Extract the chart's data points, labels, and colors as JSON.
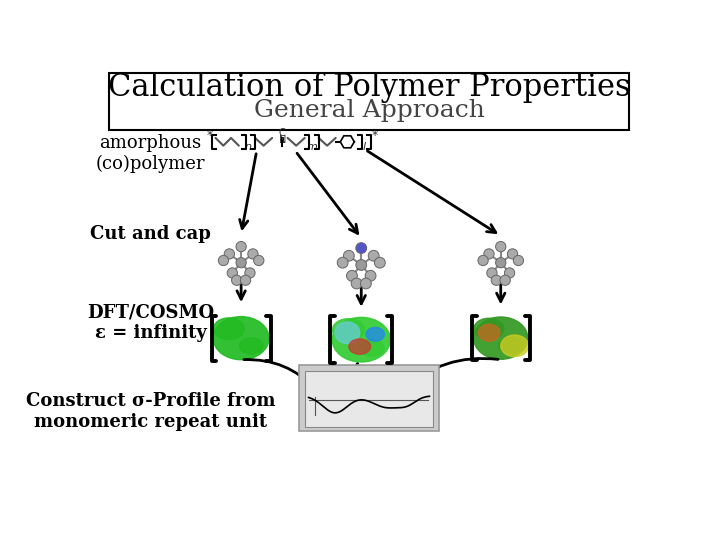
{
  "title_line1": "Calculation of Polymer Properties",
  "title_line2": "General Approach",
  "label1": "amorphous\n(co)polymer",
  "label2": "Cut and cap",
  "label3": "DFT/COSMO\nε = infinity",
  "label4": "Construct σ-Profile from\nmonomeric repeat unit",
  "bg_color": "#ffffff",
  "box_color": "#000000",
  "text_color": "#000000",
  "title_fontsize": 22,
  "subtitle_fontsize": 18,
  "label_fontsize": 13
}
